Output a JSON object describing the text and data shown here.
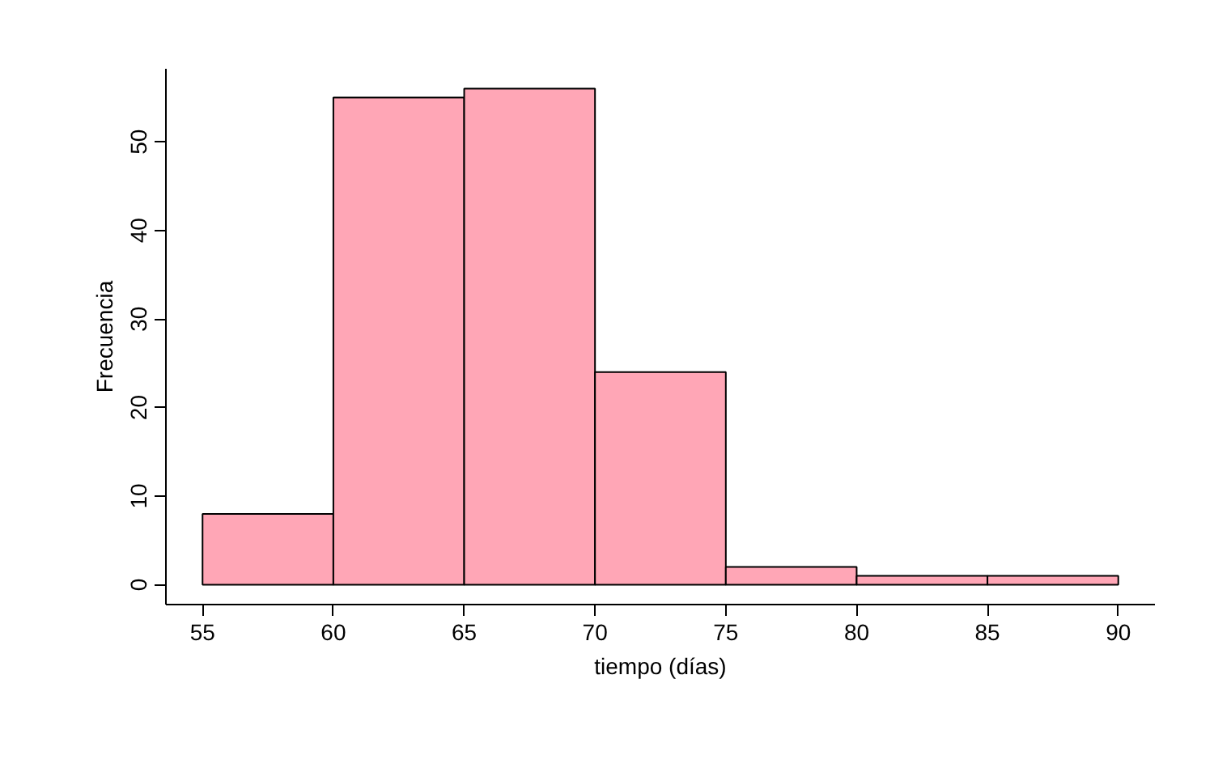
{
  "chart_data": {
    "type": "histogram",
    "xlabel": "tiempo (días)",
    "ylabel": "Frecuencia",
    "bins": [
      55,
      60,
      65,
      70,
      75,
      80,
      85,
      90
    ],
    "values": [
      8,
      55,
      56,
      24,
      2,
      1,
      1
    ],
    "color": "#ffa6b6",
    "xlim": [
      53.6,
      91.4
    ],
    "ylim": [
      -2.24,
      58.24
    ],
    "xticks": [
      55,
      60,
      65,
      70,
      75,
      80,
      85,
      90
    ],
    "yticks": [
      0,
      10,
      20,
      30,
      40,
      50
    ],
    "grid": false
  }
}
